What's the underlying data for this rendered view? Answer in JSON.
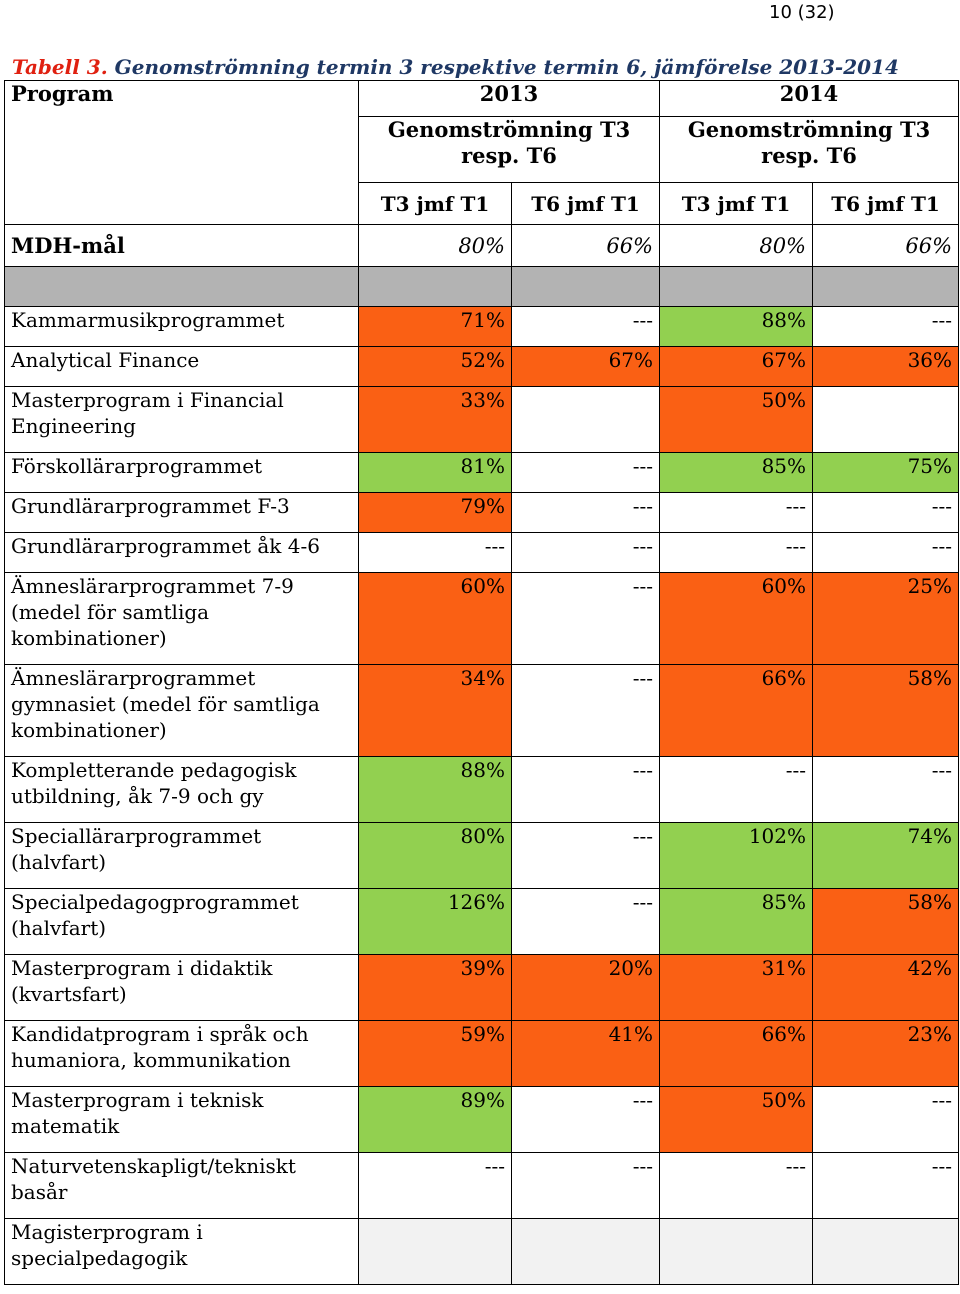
{
  "page_number": "10 (32)",
  "caption": {
    "label": "Tabell 3.",
    "text": " Genomströmning termin 3 respektive termin 6, jämförelse 2013-2014"
  },
  "header": {
    "program_label": "Program",
    "year1": "2013",
    "year2": "2014",
    "sub1": "Genomströmning T3 resp. T6",
    "sub2": "Genomströmning T3 resp. T6",
    "cols": [
      "T3 jmf T1",
      "T6 jmf T1",
      "T3 jmf T1",
      "T6 jmf T1"
    ]
  },
  "mdh": {
    "label": "MDH-mål",
    "values": [
      "80%",
      "66%",
      "80%",
      "66%"
    ]
  },
  "colors": {
    "orange": "#fa6014",
    "green": "#92d050",
    "gray": "#b3b3b3",
    "lightgray": "#f2f2f2"
  },
  "rows": [
    {
      "program": "Kammarmusikprogrammet",
      "values": [
        "71%",
        "---",
        "88%",
        "---"
      ],
      "colors": [
        "orange",
        "",
        "green",
        ""
      ]
    },
    {
      "program": "Analytical Finance",
      "values": [
        "52%",
        "67%",
        "67%",
        "36%"
      ],
      "colors": [
        "orange",
        "orange",
        "orange",
        "orange"
      ]
    },
    {
      "program": "Masterprogram i Financial Engineering",
      "values": [
        "33%",
        "",
        "50%",
        ""
      ],
      "colors": [
        "orange",
        "",
        "orange",
        ""
      ]
    },
    {
      "program": "Förskollärarprogrammet",
      "values": [
        "81%",
        "---",
        "85%",
        "75%"
      ],
      "colors": [
        "green",
        "",
        "green",
        "green"
      ]
    },
    {
      "program": "Grundlärarprogrammet F-3",
      "values": [
        "79%",
        "---",
        "---",
        "---"
      ],
      "colors": [
        "orange",
        "",
        "",
        ""
      ]
    },
    {
      "program": "Grundlärarprogrammet åk 4-6",
      "values": [
        "---",
        "---",
        "---",
        "---"
      ],
      "colors": [
        "",
        "",
        "",
        ""
      ]
    },
    {
      "program": "Ämneslärarprogrammet 7-9 (medel för samtliga kombinationer)",
      "values": [
        "60%",
        "---",
        "60%",
        "25%"
      ],
      "colors": [
        "orange",
        "",
        "orange",
        "orange"
      ]
    },
    {
      "program": "Ämneslärarprogrammet gymnasiet (medel för samtliga kombinationer)",
      "values": [
        "34%",
        "---",
        "66%",
        "58%"
      ],
      "colors": [
        "orange",
        "",
        "orange",
        "orange"
      ]
    },
    {
      "program": "Kompletterande pedagogisk utbildning, åk 7-9 och gy",
      "values": [
        "88%",
        "---",
        "---",
        "---"
      ],
      "colors": [
        "green",
        "",
        "",
        ""
      ]
    },
    {
      "program": "Speciallärarprogrammet (halvfart)",
      "values": [
        "80%",
        "---",
        "102%",
        "74%"
      ],
      "colors": [
        "green",
        "",
        "green",
        "green"
      ]
    },
    {
      "program": "Specialpedagogprogrammet (halvfart)",
      "values": [
        "126%",
        "---",
        "85%",
        "58%"
      ],
      "colors": [
        "green",
        "",
        "green",
        "orange"
      ]
    },
    {
      "program": "Masterprogram i didaktik (kvartsfart)",
      "values": [
        "39%",
        "20%",
        "31%",
        "42%"
      ],
      "colors": [
        "orange",
        "orange",
        "orange",
        "orange"
      ]
    },
    {
      "program": "Kandidatprogram i språk och humaniora, kommunikation",
      "values": [
        "59%",
        "41%",
        "66%",
        "23%"
      ],
      "colors": [
        "orange",
        "orange",
        "orange",
        "orange"
      ]
    },
    {
      "program": "Masterprogram i teknisk matematik",
      "values": [
        "89%",
        "---",
        "50%",
        "---"
      ],
      "colors": [
        "green",
        "",
        "orange",
        ""
      ]
    },
    {
      "program": "Naturvetenskapligt/tekniskt basår",
      "values": [
        "---",
        "---",
        "---",
        "---"
      ],
      "colors": [
        "",
        "",
        "",
        ""
      ]
    },
    {
      "program": "Magisterprogram i specialpedagogik",
      "values": [
        "",
        "",
        "",
        ""
      ],
      "colors": [
        "lightgray",
        "lightgray",
        "lightgray",
        "lightgray"
      ]
    }
  ]
}
